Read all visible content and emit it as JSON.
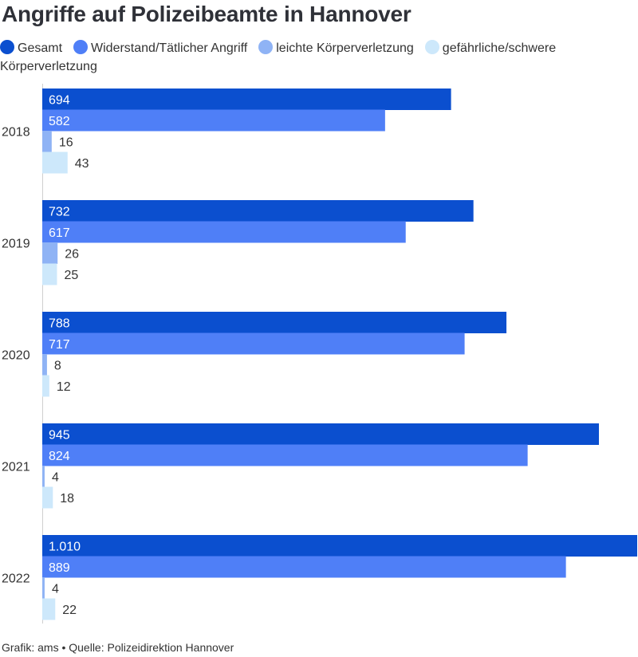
{
  "chart_data": {
    "type": "bar",
    "orientation": "horizontal",
    "title": "Angriffe auf Polizeibeamte in Hannover",
    "categories": [
      "2018",
      "2019",
      "2020",
      "2021",
      "2022"
    ],
    "series": [
      {
        "name": "Gesamt",
        "color": "#0b4fcf",
        "values": [
          694,
          732,
          788,
          945,
          1010
        ],
        "labels": [
          "694",
          "732",
          "788",
          "945",
          "1.010"
        ]
      },
      {
        "name": "Widerstand/Tätlicher Angriff",
        "color": "#4f7ff7",
        "values": [
          582,
          617,
          717,
          824,
          889
        ],
        "labels": [
          "582",
          "617",
          "717",
          "824",
          "889"
        ]
      },
      {
        "name": "leichte Körperverletzung",
        "color": "#8fb3f5",
        "values": [
          16,
          26,
          8,
          4,
          4
        ],
        "labels": [
          "16",
          "26",
          "8",
          "4",
          "4"
        ]
      },
      {
        "name": "gefährliche/schwere Körperverletzung",
        "color": "#cde8fb",
        "values": [
          43,
          25,
          12,
          18,
          22
        ],
        "labels": [
          "43",
          "25",
          "12",
          "18",
          "22"
        ]
      }
    ],
    "xlim": [
      0,
      1010
    ],
    "grid": false,
    "legend_position": "top-left"
  },
  "source_text": "Grafik: ams • Quelle: Polizeidirektion Hannover"
}
